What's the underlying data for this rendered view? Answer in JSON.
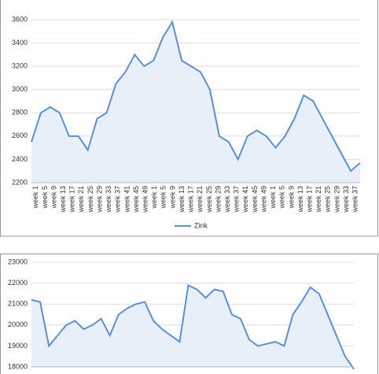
{
  "chart_data": [
    {
      "type": "line",
      "categories": [
        "week 1",
        "week 5",
        "week 9",
        "week 13",
        "week 17",
        "week 21",
        "week 25",
        "week 29",
        "week 33",
        "week 37",
        "week 41",
        "week 45",
        "week 49",
        "week 1",
        "week 5",
        "week 9",
        "week 13",
        "week 17",
        "week 21",
        "week 25",
        "week 29",
        "week 33",
        "week 37",
        "week 41",
        "week 45",
        "week 49",
        "week 1",
        "week 5",
        "week 9",
        "week 13",
        "week 17",
        "week 21",
        "week 25",
        "week 29",
        "week 33",
        "week 37"
      ],
      "series": [
        {
          "name": "Zink",
          "color": "#5b8fd6",
          "values": [
            2550,
            2800,
            2850,
            2800,
            2600,
            2600,
            2480,
            2750,
            2800,
            3050,
            3150,
            3300,
            3200,
            3250,
            3450,
            3580,
            3250,
            3200,
            3150,
            3000,
            2600,
            2550,
            2400,
            2600,
            2650,
            2600,
            2500,
            2600,
            2750,
            2950,
            2900,
            2750,
            2600,
            2450,
            2300,
            2370
          ]
        }
      ],
      "ylim": [
        2200,
        3600
      ],
      "yticks": [
        2200,
        2400,
        2600,
        2800,
        3000,
        3200,
        3400,
        3600
      ],
      "grid": true,
      "legend": "bottom"
    },
    {
      "type": "line",
      "series": [
        {
          "color": "#5b8fd6",
          "values": [
            21200,
            21100,
            19000,
            19500,
            20000,
            20200,
            19800,
            20000,
            20300,
            19500,
            20500,
            20800,
            21000,
            21100,
            20200,
            19800,
            19500,
            19200,
            21900,
            21700,
            21300,
            21700,
            21600,
            20500,
            20300,
            19300,
            19000,
            19100,
            19200,
            19000,
            20500,
            21100,
            21800,
            21500,
            20500,
            19500,
            18500,
            17900
          ]
        }
      ],
      "ylim": [
        18000,
        23000
      ],
      "yticks": [
        18000,
        19000,
        20000,
        21000,
        22000,
        23000
      ],
      "grid": true
    }
  ]
}
